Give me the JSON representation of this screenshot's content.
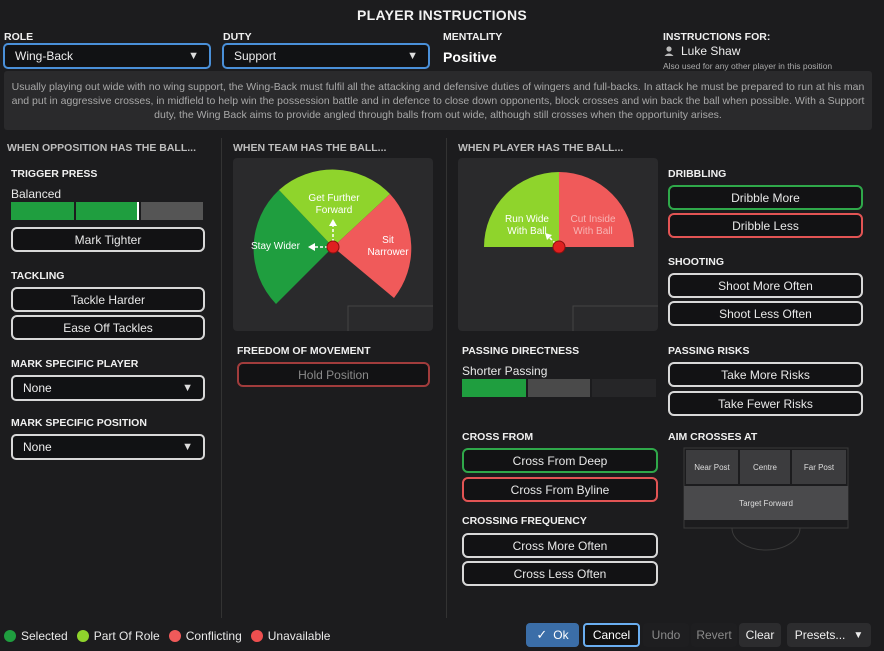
{
  "header": {
    "title": "PLAYER INSTRUCTIONS",
    "role_label": "ROLE",
    "role_value": "Wing-Back",
    "duty_label": "DUTY",
    "duty_value": "Support",
    "mentality_label": "MENTALITY",
    "mentality_value": "Positive",
    "instructions_for_label": "INSTRUCTIONS FOR:",
    "player_name": "Luke Shaw",
    "also_used": "Also used for any other player in this position"
  },
  "description": "Usually playing out wide with no wing support, the Wing-Back must fulfil all the attacking and defensive duties of wingers and full-backs. In attack he must be prepared to run at his man and put in aggressive crosses, in midfield to help win the possession battle and in defence to close down opponents, block crosses and win back the ball when possible. With a Support duty, the Wing Back aims to provide angled through balls from out wide, although still crosses when the opportunity arises.",
  "opposition": {
    "heading": "WHEN OPPOSITION HAS THE BALL...",
    "trigger_press_label": "TRIGGER PRESS",
    "trigger_press_value": "Balanced",
    "trigger_press_level": 0.67,
    "mark_tighter": "Mark Tighter",
    "tackling_label": "TACKLING",
    "tackle_harder": "Tackle Harder",
    "ease_off_tackles": "Ease Off Tackles",
    "mark_player_label": "MARK SPECIFIC PLAYER",
    "mark_player_value": "None",
    "mark_position_label": "MARK SPECIFIC POSITION",
    "mark_position_value": "None"
  },
  "team": {
    "heading": "WHEN TEAM HAS THE BALL...",
    "get_further_forward": "Get Further Forward",
    "stay_wider": "Stay Wider",
    "sit_narrower": "Sit Narrower",
    "freedom_label": "FREEDOM OF MOVEMENT",
    "hold_position": "Hold Position"
  },
  "player": {
    "heading": "WHEN PLAYER HAS THE BALL...",
    "run_wide": "Run Wide With Ball",
    "cut_inside": "Cut Inside With Ball",
    "passing_directness_label": "PASSING DIRECTNESS",
    "passing_directness_value": "Shorter Passing",
    "passing_directness_level": 0.33,
    "cross_from_label": "CROSS FROM",
    "cross_from_deep": "Cross From Deep",
    "cross_from_byline": "Cross From Byline",
    "crossing_freq_label": "CROSSING FREQUENCY",
    "cross_more_often": "Cross More Often",
    "cross_less_often": "Cross Less Often",
    "dribbling_label": "DRIBBLING",
    "dribble_more": "Dribble More",
    "dribble_less": "Dribble Less",
    "shooting_label": "SHOOTING",
    "shoot_more_often": "Shoot More Often",
    "shoot_less_often": "Shoot Less Often",
    "passing_risks_label": "PASSING RISKS",
    "take_more_risks": "Take More Risks",
    "take_fewer_risks": "Take Fewer Risks",
    "aim_crosses_label": "AIM CROSSES AT",
    "near_post": "Near Post",
    "centre": "Centre",
    "far_post": "Far Post",
    "target_forward": "Target Forward"
  },
  "legend": {
    "selected": "Selected",
    "part_of_role": "Part Of Role",
    "conflicting": "Conflicting",
    "unavailable": "Unavailable"
  },
  "footer": {
    "ok": "Ok",
    "cancel": "Cancel",
    "undo": "Undo",
    "revert": "Revert",
    "clear": "Clear",
    "presets": "Presets..."
  },
  "colors": {
    "selected": "#1f9e3f",
    "part_of_role": "#8fd42c",
    "conflicting": "#f05a5a",
    "unavailable": "#ee4f4f",
    "accent": "#4a90d9"
  }
}
